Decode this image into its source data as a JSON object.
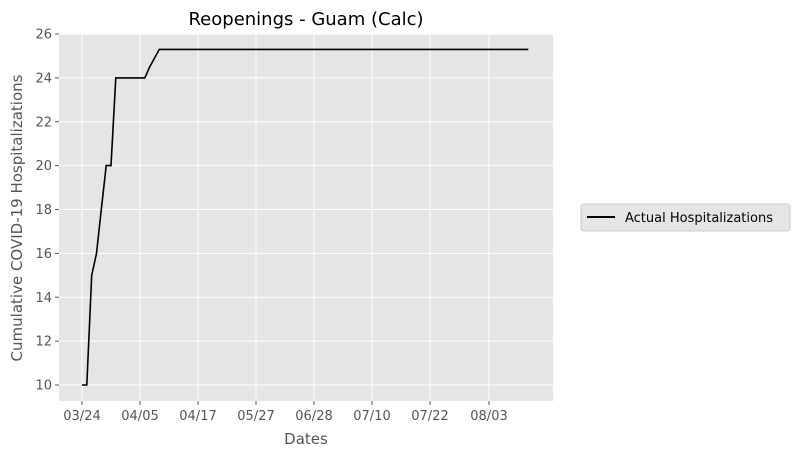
{
  "chart_data": {
    "type": "line",
    "title": "Reopenings - Guam (Calc)",
    "xlabel": "Dates",
    "ylabel": "Cumulative COVID-19 Hospitalizations",
    "x_tick_labels": [
      "03/24",
      "04/05",
      "04/17",
      "05/27",
      "06/28",
      "07/10",
      "07/22",
      "08/03"
    ],
    "y_ticks": [
      10,
      12,
      14,
      16,
      18,
      20,
      22,
      24,
      26
    ],
    "ylim": [
      9.3,
      26
    ],
    "grid": true,
    "legend_position": "right",
    "series": [
      {
        "name": "Actual Hospitalizations",
        "color": "#000000",
        "points": [
          {
            "x": "03/24",
            "y": 10
          },
          {
            "x": "03/25",
            "y": 10
          },
          {
            "x": "03/26",
            "y": 15
          },
          {
            "x": "03/27",
            "y": 16
          },
          {
            "x": "03/28",
            "y": 18
          },
          {
            "x": "03/29",
            "y": 20
          },
          {
            "x": "03/30",
            "y": 20
          },
          {
            "x": "03/31",
            "y": 24
          },
          {
            "x": "04/01",
            "y": 24
          },
          {
            "x": "04/02",
            "y": 24
          },
          {
            "x": "04/03",
            "y": 24
          },
          {
            "x": "04/04",
            "y": 24
          },
          {
            "x": "04/05",
            "y": 24
          },
          {
            "x": "04/06",
            "y": 24
          },
          {
            "x": "04/07",
            "y": 24.5
          },
          {
            "x": "04/08",
            "y": 24.9
          },
          {
            "x": "04/09",
            "y": 25.3
          },
          {
            "x": "04/10",
            "y": 25.3
          },
          {
            "x": "04/17",
            "y": 25.3
          },
          {
            "x": "05/27",
            "y": 25.3
          },
          {
            "x": "06/28",
            "y": 25.3
          },
          {
            "x": "07/10",
            "y": 25.3
          },
          {
            "x": "07/22",
            "y": 25.3
          },
          {
            "x": "08/03",
            "y": 25.3
          },
          {
            "x": "08/11",
            "y": 25.3
          }
        ]
      }
    ]
  }
}
